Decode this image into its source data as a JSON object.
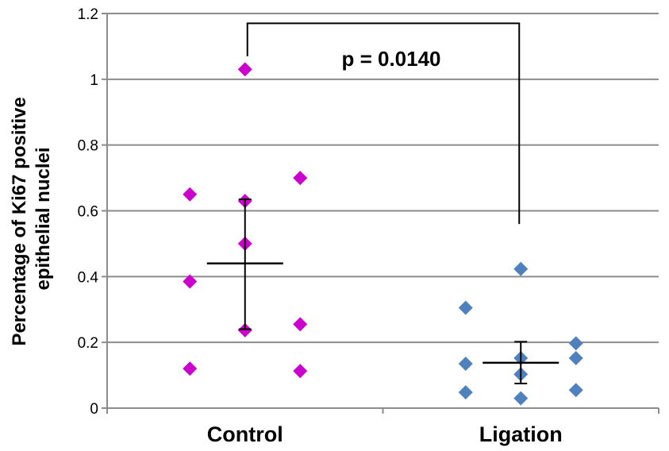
{
  "chart_data": {
    "type": "scatter",
    "title": "",
    "ylabel_lines": [
      "Percentage of Ki67 positive",
      "epithelial nuclei"
    ],
    "xlabel": "",
    "ylim": [
      0,
      1.2
    ],
    "yticks": [
      "0",
      "0.2",
      "0.4",
      "0.6",
      "0.8",
      "1",
      "1.2"
    ],
    "ytick_values": [
      0,
      0.2,
      0.4,
      0.6,
      0.8,
      1.0,
      1.2
    ],
    "grid": true,
    "legend": "none",
    "categories": [
      "Control",
      "Ligation"
    ],
    "series": [
      {
        "category": "Control",
        "color": "#CC00CC",
        "points": [
          {
            "x": 0.8,
            "y": 0.65
          },
          {
            "x": 0.8,
            "y": 0.385
          },
          {
            "x": 0.8,
            "y": 0.12
          },
          {
            "x": 1.0,
            "y": 1.03
          },
          {
            "x": 1.0,
            "y": 0.63
          },
          {
            "x": 1.0,
            "y": 0.5
          },
          {
            "x": 1.0,
            "y": 0.237
          },
          {
            "x": 1.2,
            "y": 0.7
          },
          {
            "x": 1.2,
            "y": 0.255
          },
          {
            "x": 1.2,
            "y": 0.113
          }
        ],
        "mean": 0.44,
        "error_low": 0.24,
        "error_high": 0.635
      },
      {
        "category": "Ligation",
        "color": "#4F81BD",
        "points": [
          {
            "x": 1.8,
            "y": 0.305
          },
          {
            "x": 1.8,
            "y": 0.135
          },
          {
            "x": 1.8,
            "y": 0.048
          },
          {
            "x": 2.0,
            "y": 0.423
          },
          {
            "x": 2.0,
            "y": 0.152
          },
          {
            "x": 2.0,
            "y": 0.103
          },
          {
            "x": 2.0,
            "y": 0.03
          },
          {
            "x": 2.2,
            "y": 0.197
          },
          {
            "x": 2.2,
            "y": 0.152
          },
          {
            "x": 2.2,
            "y": 0.055
          }
        ],
        "mean": 0.138,
        "error_low": 0.075,
        "error_high": 0.202
      }
    ],
    "annotation": {
      "text": "p = 0.0140",
      "bracket_top": 1.17,
      "bracket_left_bottom": 1.07,
      "bracket_right_bottom": 0.56
    }
  }
}
